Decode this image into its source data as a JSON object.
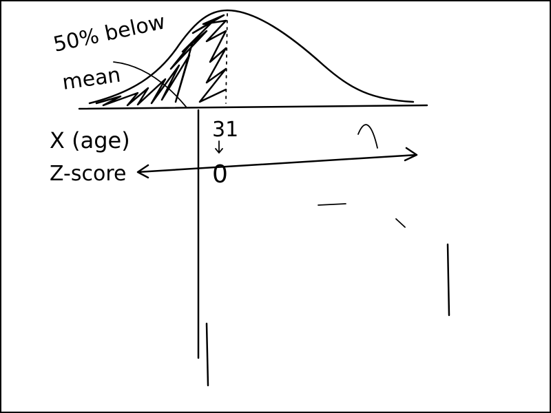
{
  "annotation": {
    "lines": [
      "50% below",
      "mean"
    ]
  },
  "axes": {
    "x_label": "X (age)",
    "z_label": "Z-score",
    "x_value": "31",
    "z_value": "0"
  }
}
